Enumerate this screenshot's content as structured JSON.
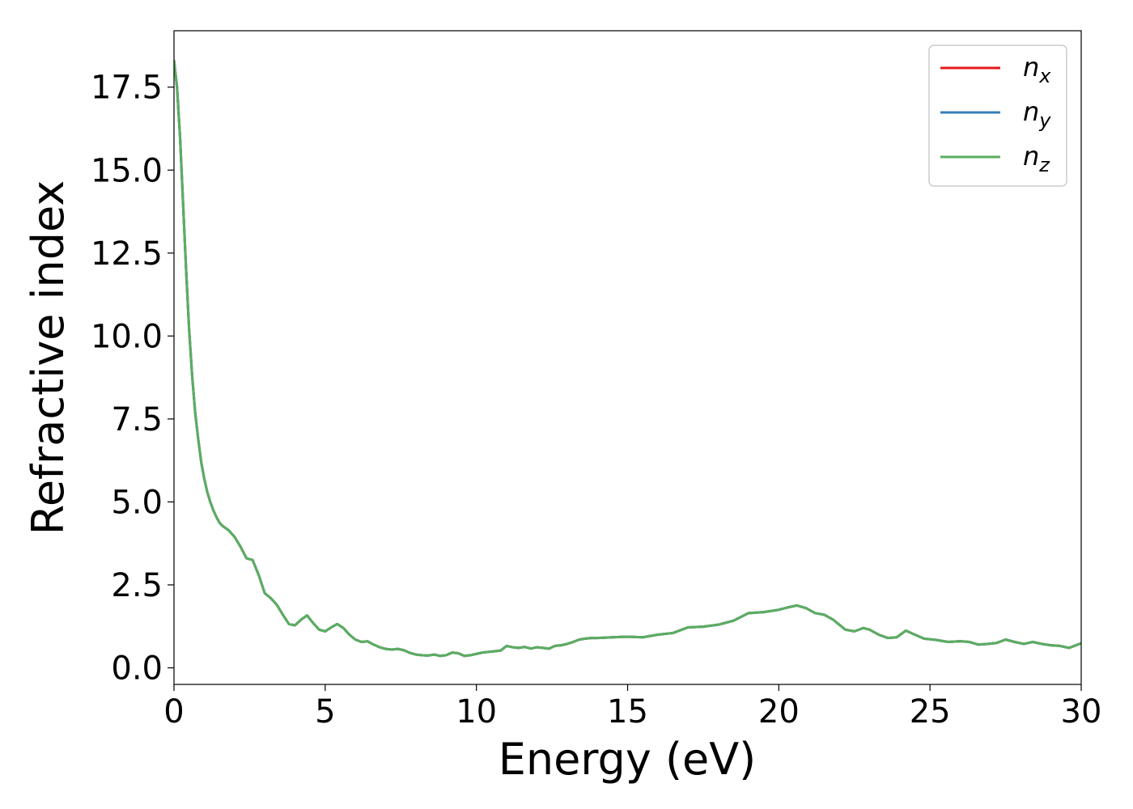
{
  "chart_data": {
    "type": "line",
    "title": "",
    "xlabel": "Energy (eV)",
    "ylabel": "Refractive index",
    "xlim": [
      0,
      30
    ],
    "ylim": [
      -0.5,
      19.2
    ],
    "xticks": [
      0,
      5,
      10,
      15,
      20,
      25,
      30
    ],
    "xtick_labels": [
      "0",
      "5",
      "10",
      "15",
      "20",
      "25",
      "30"
    ],
    "yticks": [
      0,
      2.5,
      5,
      7.5,
      10,
      12.5,
      15,
      17.5
    ],
    "ytick_labels": [
      "0.0",
      "2.5",
      "5.0",
      "7.5",
      "10.0",
      "12.5",
      "15.0",
      "17.5"
    ],
    "grid": false,
    "legend_position": "top-right",
    "x": [
      0,
      0.1,
      0.2,
      0.3,
      0.4,
      0.5,
      0.6,
      0.7,
      0.8,
      0.9,
      1.0,
      1.1,
      1.2,
      1.3,
      1.4,
      1.5,
      1.6,
      1.8,
      2.0,
      2.2,
      2.4,
      2.6,
      2.8,
      3.0,
      3.2,
      3.4,
      3.6,
      3.8,
      4.0,
      4.2,
      4.4,
      4.6,
      4.8,
      5.0,
      5.2,
      5.4,
      5.6,
      5.8,
      6.0,
      6.2,
      6.4,
      6.6,
      6.8,
      7.0,
      7.2,
      7.4,
      7.6,
      7.8,
      8.0,
      8.2,
      8.4,
      8.6,
      8.8,
      9.0,
      9.2,
      9.4,
      9.6,
      9.8,
      10.0,
      10.2,
      10.4,
      10.6,
      10.8,
      11.0,
      11.2,
      11.4,
      11.6,
      11.8,
      12.0,
      12.2,
      12.4,
      12.6,
      12.8,
      13.0,
      13.2,
      13.4,
      13.6,
      13.8,
      14.0,
      14.5,
      15.0,
      15.5,
      16.0,
      16.5,
      17.0,
      17.5,
      18.0,
      18.5,
      19.0,
      19.5,
      20.0,
      20.3,
      20.6,
      20.9,
      21.2,
      21.5,
      21.8,
      22.0,
      22.2,
      22.5,
      22.8,
      23.0,
      23.3,
      23.6,
      23.9,
      24.2,
      24.5,
      24.8,
      25.2,
      25.6,
      26.0,
      26.3,
      26.6,
      26.9,
      27.2,
      27.5,
      27.8,
      28.1,
      28.4,
      28.7,
      29.0,
      29.3,
      29.6,
      30.0
    ],
    "series": [
      {
        "name": "n_x",
        "label_base": "n",
        "label_sub": "x",
        "color": "#e41a1c",
        "values": [
          18.3,
          17.5,
          16.0,
          14.0,
          12.0,
          10.2,
          8.8,
          7.7,
          6.9,
          6.2,
          5.7,
          5.3,
          5.0,
          4.75,
          4.55,
          4.38,
          4.28,
          4.15,
          3.95,
          3.65,
          3.3,
          3.25,
          2.8,
          2.25,
          2.1,
          1.9,
          1.6,
          1.32,
          1.28,
          1.45,
          1.58,
          1.35,
          1.15,
          1.1,
          1.22,
          1.32,
          1.2,
          1.0,
          0.85,
          0.78,
          0.8,
          0.7,
          0.62,
          0.57,
          0.55,
          0.57,
          0.53,
          0.45,
          0.4,
          0.38,
          0.37,
          0.4,
          0.36,
          0.38,
          0.46,
          0.44,
          0.36,
          0.38,
          0.42,
          0.46,
          0.48,
          0.5,
          0.52,
          0.66,
          0.62,
          0.6,
          0.63,
          0.58,
          0.62,
          0.6,
          0.58,
          0.66,
          0.68,
          0.72,
          0.78,
          0.85,
          0.88,
          0.9,
          0.9,
          0.92,
          0.94,
          0.92,
          1.0,
          1.05,
          1.22,
          1.24,
          1.3,
          1.42,
          1.65,
          1.68,
          1.75,
          1.82,
          1.88,
          1.8,
          1.65,
          1.6,
          1.45,
          1.3,
          1.15,
          1.1,
          1.2,
          1.15,
          1.0,
          0.9,
          0.92,
          1.12,
          1.0,
          0.88,
          0.84,
          0.78,
          0.8,
          0.78,
          0.7,
          0.72,
          0.75,
          0.85,
          0.78,
          0.72,
          0.78,
          0.72,
          0.68,
          0.66,
          0.6,
          0.74
        ]
      },
      {
        "name": "n_y",
        "label_base": "n",
        "label_sub": "y",
        "color": "#377eb8",
        "values": [
          18.3,
          17.5,
          16.0,
          14.0,
          12.0,
          10.2,
          8.8,
          7.7,
          6.9,
          6.2,
          5.7,
          5.3,
          5.0,
          4.75,
          4.55,
          4.38,
          4.28,
          4.15,
          3.95,
          3.65,
          3.3,
          3.25,
          2.8,
          2.25,
          2.1,
          1.9,
          1.6,
          1.32,
          1.28,
          1.45,
          1.58,
          1.35,
          1.15,
          1.1,
          1.22,
          1.32,
          1.2,
          1.0,
          0.85,
          0.78,
          0.8,
          0.7,
          0.62,
          0.57,
          0.55,
          0.57,
          0.53,
          0.45,
          0.4,
          0.38,
          0.37,
          0.4,
          0.36,
          0.38,
          0.46,
          0.44,
          0.36,
          0.38,
          0.42,
          0.46,
          0.48,
          0.5,
          0.52,
          0.66,
          0.62,
          0.6,
          0.63,
          0.58,
          0.62,
          0.6,
          0.58,
          0.66,
          0.68,
          0.72,
          0.78,
          0.85,
          0.88,
          0.9,
          0.9,
          0.92,
          0.94,
          0.92,
          1.0,
          1.05,
          1.22,
          1.24,
          1.3,
          1.42,
          1.65,
          1.68,
          1.75,
          1.82,
          1.88,
          1.8,
          1.65,
          1.6,
          1.45,
          1.3,
          1.15,
          1.1,
          1.2,
          1.15,
          1.0,
          0.9,
          0.92,
          1.12,
          1.0,
          0.88,
          0.84,
          0.78,
          0.8,
          0.78,
          0.7,
          0.72,
          0.75,
          0.85,
          0.78,
          0.72,
          0.78,
          0.72,
          0.68,
          0.66,
          0.6,
          0.74
        ]
      },
      {
        "name": "n_z",
        "label_base": "n",
        "label_sub": "z",
        "color": "#5aae61",
        "values": [
          18.3,
          17.5,
          16.0,
          14.0,
          12.0,
          10.2,
          8.8,
          7.7,
          6.9,
          6.2,
          5.7,
          5.3,
          5.0,
          4.75,
          4.55,
          4.38,
          4.28,
          4.15,
          3.95,
          3.65,
          3.3,
          3.25,
          2.8,
          2.25,
          2.1,
          1.9,
          1.6,
          1.32,
          1.28,
          1.45,
          1.58,
          1.35,
          1.15,
          1.1,
          1.22,
          1.32,
          1.2,
          1.0,
          0.85,
          0.78,
          0.8,
          0.7,
          0.62,
          0.57,
          0.55,
          0.57,
          0.53,
          0.45,
          0.4,
          0.38,
          0.37,
          0.4,
          0.36,
          0.38,
          0.46,
          0.44,
          0.36,
          0.38,
          0.42,
          0.46,
          0.48,
          0.5,
          0.52,
          0.66,
          0.62,
          0.6,
          0.63,
          0.58,
          0.62,
          0.6,
          0.58,
          0.66,
          0.68,
          0.72,
          0.78,
          0.85,
          0.88,
          0.9,
          0.9,
          0.92,
          0.94,
          0.92,
          1.0,
          1.05,
          1.22,
          1.24,
          1.3,
          1.42,
          1.65,
          1.68,
          1.75,
          1.82,
          1.88,
          1.8,
          1.65,
          1.6,
          1.45,
          1.3,
          1.15,
          1.1,
          1.2,
          1.15,
          1.0,
          0.9,
          0.92,
          1.12,
          1.0,
          0.88,
          0.84,
          0.78,
          0.8,
          0.78,
          0.7,
          0.72,
          0.75,
          0.85,
          0.78,
          0.72,
          0.78,
          0.72,
          0.68,
          0.66,
          0.6,
          0.74
        ]
      }
    ]
  }
}
